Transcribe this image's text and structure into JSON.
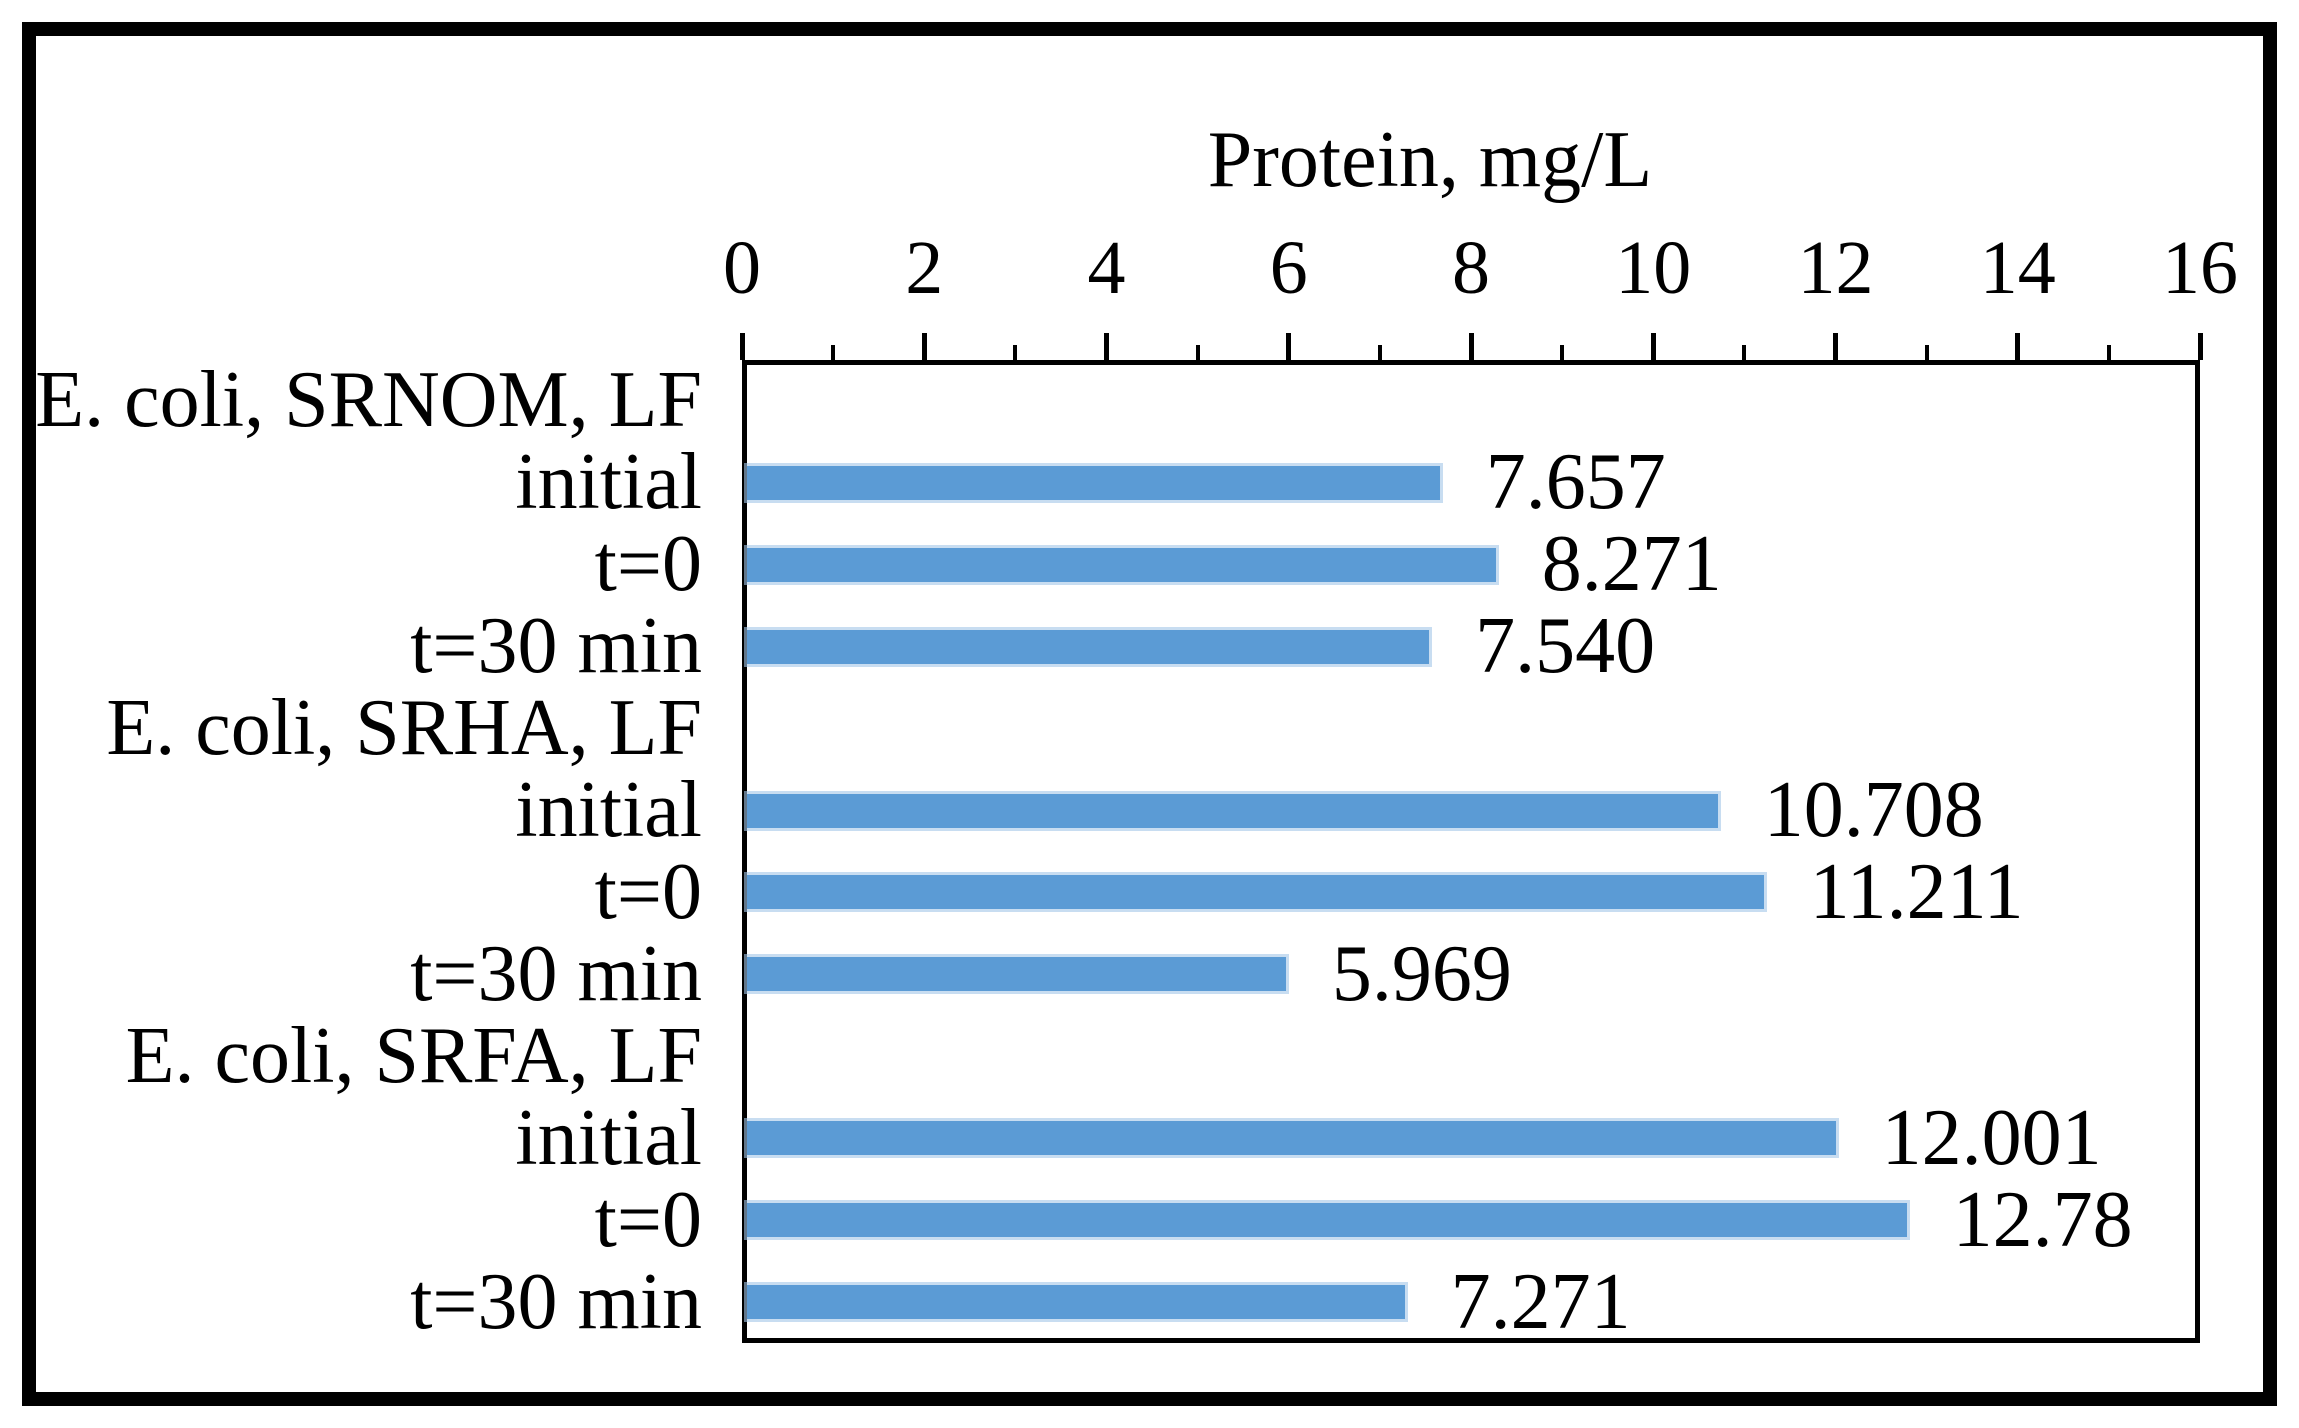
{
  "figure": {
    "background_color": "#ffffff",
    "outer_border_color": "#000000",
    "axis_line_color": "#000000",
    "text_color": "#000000"
  },
  "chart_data": {
    "type": "bar",
    "orientation": "horizontal",
    "title": "Protein, mg/L",
    "xlabel": "Protein, mg/L",
    "ylabel": "",
    "axis_position": "top",
    "xlim": [
      0,
      16
    ],
    "x_major_ticks": [
      0,
      2,
      4,
      6,
      8,
      10,
      12,
      14,
      16
    ],
    "x_minor_ticks": [
      1,
      3,
      5,
      7,
      9,
      11,
      13,
      15
    ],
    "grid": false,
    "legend": "none",
    "bar_color": "#5b9bd5",
    "categories": [
      "E. coli, SRNOM, LF",
      "initial",
      "t=0",
      "t=30 min",
      "E. coli, SRHA, LF",
      "initial",
      "t=0",
      "t=30 min",
      "E. coli, SRFA, LF",
      "initial",
      "t=0",
      "t=30 min"
    ],
    "values": [
      null,
      7.657,
      8.271,
      7.54,
      null,
      10.708,
      11.211,
      5.969,
      null,
      12.001,
      12.78,
      7.271
    ],
    "value_labels": [
      "",
      "7.657",
      "8.271",
      "7.540",
      "",
      "10.708",
      "11.211",
      "5.969",
      "",
      "12.001",
      "12.78",
      "7.271"
    ]
  }
}
